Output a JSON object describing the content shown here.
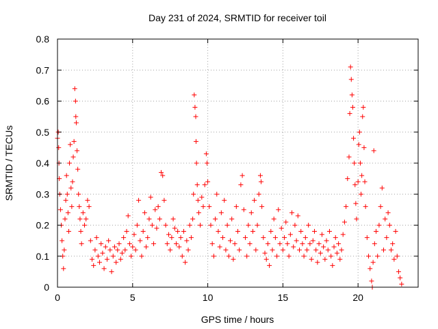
{
  "chart_data": {
    "type": "scatter",
    "title": "Day 231 of 2024, SRMTID for receiver toil",
    "xlabel": "GPS time / hours",
    "ylabel": "SRMTID / TECUs",
    "xlim": [
      0,
      24
    ],
    "ylim": [
      0,
      0.8
    ],
    "x_ticks": [
      0,
      5,
      10,
      15,
      20
    ],
    "x_tick_labels": [
      "0",
      "5",
      "10",
      "15",
      "20"
    ],
    "y_ticks": [
      0,
      0.1,
      0.2,
      0.3,
      0.4,
      0.5,
      0.6,
      0.7,
      0.8
    ],
    "y_tick_labels": [
      "0",
      "0.1",
      "0.2",
      "0.3",
      "0.4",
      "0.5",
      "0.6",
      "0.7",
      "0.8"
    ],
    "grid": true,
    "marker": "plus",
    "marker_color": "#ff0000",
    "series": [
      {
        "name": "SRMTID",
        "points": [
          [
            0.0,
            0.48
          ],
          [
            0.05,
            0.5
          ],
          [
            0.08,
            0.45
          ],
          [
            0.1,
            0.4
          ],
          [
            0.12,
            0.35
          ],
          [
            0.15,
            0.3
          ],
          [
            0.2,
            0.25
          ],
          [
            0.25,
            0.2
          ],
          [
            0.3,
            0.15
          ],
          [
            0.35,
            0.1
          ],
          [
            0.4,
            0.06
          ],
          [
            0.45,
            0.12
          ],
          [
            0.5,
            0.22
          ],
          [
            0.55,
            0.28
          ],
          [
            0.6,
            0.36
          ],
          [
            0.65,
            0.3
          ],
          [
            0.7,
            0.24
          ],
          [
            0.75,
            0.18
          ],
          [
            0.8,
            0.4
          ],
          [
            0.85,
            0.46
          ],
          [
            0.9,
            0.32
          ],
          [
            0.95,
            0.26
          ],
          [
            1.0,
            0.34
          ],
          [
            1.05,
            0.42
          ],
          [
            1.1,
            0.47
          ],
          [
            1.15,
            0.64
          ],
          [
            1.2,
            0.6
          ],
          [
            1.22,
            0.55
          ],
          [
            1.25,
            0.53
          ],
          [
            1.3,
            0.44
          ],
          [
            1.35,
            0.38
          ],
          [
            1.4,
            0.3
          ],
          [
            1.45,
            0.26
          ],
          [
            1.5,
            0.22
          ],
          [
            1.55,
            0.18
          ],
          [
            1.6,
            0.14
          ],
          [
            1.7,
            0.24
          ],
          [
            1.8,
            0.2
          ],
          [
            1.9,
            0.22
          ],
          [
            2.0,
            0.28
          ],
          [
            2.1,
            0.26
          ],
          [
            2.2,
            0.15
          ],
          [
            2.3,
            0.09
          ],
          [
            2.4,
            0.07
          ],
          [
            2.5,
            0.12
          ],
          [
            2.6,
            0.16
          ],
          [
            2.7,
            0.1
          ],
          [
            2.8,
            0.08
          ],
          [
            2.9,
            0.14
          ],
          [
            3.0,
            0.11
          ],
          [
            3.1,
            0.06
          ],
          [
            3.2,
            0.13
          ],
          [
            3.3,
            0.09
          ],
          [
            3.4,
            0.15
          ],
          [
            3.5,
            0.12
          ],
          [
            3.6,
            0.05
          ],
          [
            3.7,
            0.1
          ],
          [
            3.8,
            0.13
          ],
          [
            3.9,
            0.08
          ],
          [
            4.0,
            0.12
          ],
          [
            4.1,
            0.14
          ],
          [
            4.2,
            0.09
          ],
          [
            4.3,
            0.11
          ],
          [
            4.4,
            0.16
          ],
          [
            4.5,
            0.12
          ],
          [
            4.6,
            0.18
          ],
          [
            4.7,
            0.23
          ],
          [
            4.8,
            0.14
          ],
          [
            4.9,
            0.1
          ],
          [
            5.0,
            0.13
          ],
          [
            5.1,
            0.17
          ],
          [
            5.2,
            0.12
          ],
          [
            5.3,
            0.2
          ],
          [
            5.4,
            0.28
          ],
          [
            5.5,
            0.15
          ],
          [
            5.6,
            0.1
          ],
          [
            5.7,
            0.18
          ],
          [
            5.8,
            0.24
          ],
          [
            5.9,
            0.13
          ],
          [
            6.0,
            0.16
          ],
          [
            6.1,
            0.22
          ],
          [
            6.2,
            0.29
          ],
          [
            6.3,
            0.2
          ],
          [
            6.4,
            0.14
          ],
          [
            6.5,
            0.25
          ],
          [
            6.6,
            0.19
          ],
          [
            6.7,
            0.26
          ],
          [
            6.8,
            0.22
          ],
          [
            6.9,
            0.37
          ],
          [
            7.0,
            0.36
          ],
          [
            7.1,
            0.28
          ],
          [
            7.2,
            0.2
          ],
          [
            7.3,
            0.14
          ],
          [
            7.4,
            0.17
          ],
          [
            7.5,
            0.12
          ],
          [
            7.6,
            0.16
          ],
          [
            7.7,
            0.22
          ],
          [
            7.8,
            0.19
          ],
          [
            7.9,
            0.14
          ],
          [
            8.0,
            0.18
          ],
          [
            8.1,
            0.13
          ],
          [
            8.2,
            0.16
          ],
          [
            8.3,
            0.1
          ],
          [
            8.4,
            0.18
          ],
          [
            8.5,
            0.08
          ],
          [
            8.6,
            0.15
          ],
          [
            8.7,
            0.12
          ],
          [
            8.8,
            0.2
          ],
          [
            8.9,
            0.16
          ],
          [
            9.0,
            0.22
          ],
          [
            9.05,
            0.3
          ],
          [
            9.1,
            0.62
          ],
          [
            9.15,
            0.58
          ],
          [
            9.2,
            0.55
          ],
          [
            9.22,
            0.47
          ],
          [
            9.25,
            0.4
          ],
          [
            9.3,
            0.33
          ],
          [
            9.35,
            0.28
          ],
          [
            9.4,
            0.24
          ],
          [
            9.5,
            0.2
          ],
          [
            9.6,
            0.29
          ],
          [
            9.7,
            0.26
          ],
          [
            9.8,
            0.33
          ],
          [
            9.9,
            0.43
          ],
          [
            9.95,
            0.4
          ],
          [
            10.0,
            0.34
          ],
          [
            10.1,
            0.26
          ],
          [
            10.2,
            0.2
          ],
          [
            10.3,
            0.14
          ],
          [
            10.4,
            0.1
          ],
          [
            10.5,
            0.22
          ],
          [
            10.6,
            0.3
          ],
          [
            10.7,
            0.18
          ],
          [
            10.8,
            0.13
          ],
          [
            10.9,
            0.24
          ],
          [
            11.0,
            0.16
          ],
          [
            11.1,
            0.28
          ],
          [
            11.2,
            0.12
          ],
          [
            11.3,
            0.2
          ],
          [
            11.4,
            0.1
          ],
          [
            11.5,
            0.15
          ],
          [
            11.6,
            0.22
          ],
          [
            11.7,
            0.09
          ],
          [
            11.8,
            0.14
          ],
          [
            11.9,
            0.26
          ],
          [
            12.0,
            0.18
          ],
          [
            12.1,
            0.12
          ],
          [
            12.2,
            0.33
          ],
          [
            12.3,
            0.36
          ],
          [
            12.4,
            0.25
          ],
          [
            12.5,
            0.16
          ],
          [
            12.6,
            0.1
          ],
          [
            12.7,
            0.2
          ],
          [
            12.8,
            0.14
          ],
          [
            12.9,
            0.24
          ],
          [
            13.0,
            0.18
          ],
          [
            13.1,
            0.28
          ],
          [
            13.2,
            0.12
          ],
          [
            13.3,
            0.2
          ],
          [
            13.4,
            0.3
          ],
          [
            13.5,
            0.36
          ],
          [
            13.55,
            0.34
          ],
          [
            13.6,
            0.26
          ],
          [
            13.7,
            0.16
          ],
          [
            13.8,
            0.11
          ],
          [
            13.9,
            0.09
          ],
          [
            14.0,
            0.14
          ],
          [
            14.1,
            0.07
          ],
          [
            14.2,
            0.18
          ],
          [
            14.3,
            0.12
          ],
          [
            14.4,
            0.22
          ],
          [
            14.5,
            0.16
          ],
          [
            14.6,
            0.1
          ],
          [
            14.7,
            0.25
          ],
          [
            14.8,
            0.14
          ],
          [
            14.9,
            0.19
          ],
          [
            15.0,
            0.12
          ],
          [
            15.1,
            0.16
          ],
          [
            15.2,
            0.21
          ],
          [
            15.3,
            0.14
          ],
          [
            15.4,
            0.1
          ],
          [
            15.5,
            0.17
          ],
          [
            15.6,
            0.24
          ],
          [
            15.7,
            0.13
          ],
          [
            15.8,
            0.2
          ],
          [
            15.9,
            0.15
          ],
          [
            16.0,
            0.23
          ],
          [
            16.1,
            0.12
          ],
          [
            16.2,
            0.18
          ],
          [
            16.3,
            0.14
          ],
          [
            16.4,
            0.1
          ],
          [
            16.5,
            0.16
          ],
          [
            16.6,
            0.12
          ],
          [
            16.7,
            0.2
          ],
          [
            16.8,
            0.14
          ],
          [
            16.9,
            0.09
          ],
          [
            17.0,
            0.15
          ],
          [
            17.1,
            0.18
          ],
          [
            17.2,
            0.12
          ],
          [
            17.3,
            0.08
          ],
          [
            17.4,
            0.14
          ],
          [
            17.5,
            0.11
          ],
          [
            17.6,
            0.17
          ],
          [
            17.7,
            0.13
          ],
          [
            17.8,
            0.09
          ],
          [
            17.9,
            0.15
          ],
          [
            18.0,
            0.12
          ],
          [
            18.1,
            0.18
          ],
          [
            18.2,
            0.1
          ],
          [
            18.3,
            0.07
          ],
          [
            18.4,
            0.13
          ],
          [
            18.5,
            0.16
          ],
          [
            18.6,
            0.11
          ],
          [
            18.7,
            0.14
          ],
          [
            18.8,
            0.09
          ],
          [
            18.9,
            0.12
          ],
          [
            19.0,
            0.17
          ],
          [
            19.1,
            0.21
          ],
          [
            19.2,
            0.26
          ],
          [
            19.3,
            0.35
          ],
          [
            19.4,
            0.42
          ],
          [
            19.45,
            0.56
          ],
          [
            19.5,
            0.71
          ],
          [
            19.55,
            0.67
          ],
          [
            19.6,
            0.62
          ],
          [
            19.65,
            0.58
          ],
          [
            19.7,
            0.48
          ],
          [
            19.75,
            0.4
          ],
          [
            19.8,
            0.33
          ],
          [
            19.85,
            0.27
          ],
          [
            19.9,
            0.22
          ],
          [
            20.0,
            0.34
          ],
          [
            20.05,
            0.46
          ],
          [
            20.1,
            0.5
          ],
          [
            20.15,
            0.4
          ],
          [
            20.2,
            0.3
          ],
          [
            20.25,
            0.36
          ],
          [
            20.3,
            0.55
          ],
          [
            20.35,
            0.58
          ],
          [
            20.4,
            0.45
          ],
          [
            20.45,
            0.34
          ],
          [
            20.5,
            0.26
          ],
          [
            20.6,
            0.16
          ],
          [
            20.7,
            0.1
          ],
          [
            20.8,
            0.06
          ],
          [
            20.9,
            0.02
          ],
          [
            20.95,
            0.0
          ],
          [
            21.0,
            0.08
          ],
          [
            21.05,
            0.44
          ],
          [
            21.1,
            0.14
          ],
          [
            21.2,
            0.18
          ],
          [
            21.3,
            0.1
          ],
          [
            21.4,
            0.2
          ],
          [
            21.5,
            0.26
          ],
          [
            21.6,
            0.32
          ],
          [
            21.7,
            0.12
          ],
          [
            21.8,
            0.22
          ],
          [
            21.9,
            0.16
          ],
          [
            22.0,
            0.24
          ],
          [
            22.1,
            0.2
          ],
          [
            22.2,
            0.12
          ],
          [
            22.3,
            0.14
          ],
          [
            22.4,
            0.09
          ],
          [
            22.5,
            0.18
          ],
          [
            22.6,
            0.1
          ],
          [
            22.7,
            0.05
          ],
          [
            22.8,
            0.03
          ],
          [
            22.9,
            0.01
          ]
        ]
      }
    ]
  }
}
